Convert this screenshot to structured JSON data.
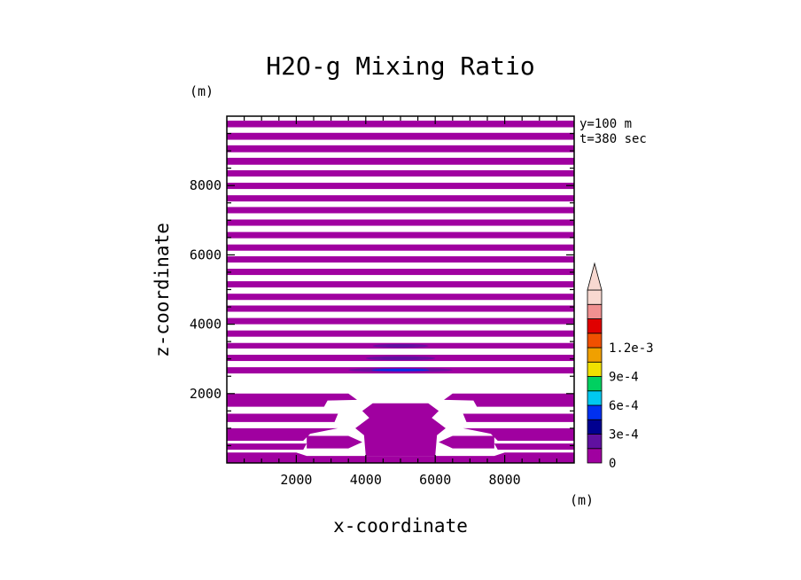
{
  "chart_data": {
    "type": "heatmap",
    "title": "H2O-g Mixing Ratio",
    "xlabel": "x-coordinate",
    "ylabel": "z-coordinate",
    "x_unit": "(m)",
    "y_unit": "(m)",
    "annotations": [
      "y=100 m",
      "t=380 sec"
    ],
    "xlim": [
      0,
      10000
    ],
    "ylim": [
      0,
      10000
    ],
    "x_ticks": [
      2000,
      4000,
      6000,
      8000
    ],
    "y_ticks": [
      2000,
      4000,
      6000,
      8000
    ],
    "x_tick_labels": [
      "2000",
      "4000",
      "6000",
      "8000"
    ],
    "y_tick_labels": [
      "2000",
      "4000",
      "6000",
      "8000"
    ],
    "colorbar": {
      "levels": [
        0,
        0.00015,
        0.0003,
        0.00045,
        0.0006,
        0.00075,
        0.0009,
        0.00105,
        0.0012,
        0.00135
      ],
      "colors": [
        "#a000a0",
        "#6010a0",
        "#000090",
        "#0030f0",
        "#00c8f0",
        "#00d060",
        "#f0e000",
        "#f0a000",
        "#f05000",
        "#e00000",
        "#f09090",
        "#f8d8d0"
      ],
      "tick_labels": [
        "0",
        "3e-4",
        "6e-4",
        "9e-4",
        "1.2e-3"
      ],
      "extend": "max"
    },
    "fill_bands_z": [
      [
        9680,
        9870
      ],
      [
        9320,
        9520
      ],
      [
        8960,
        9160
      ],
      [
        8600,
        8800
      ],
      [
        8260,
        8440
      ],
      [
        7900,
        8080
      ],
      [
        7540,
        7720
      ],
      [
        7200,
        7380
      ],
      [
        6840,
        7020
      ],
      [
        6480,
        6660
      ],
      [
        6120,
        6300
      ],
      [
        5780,
        5960
      ],
      [
        5420,
        5600
      ],
      [
        5060,
        5240
      ],
      [
        4700,
        4880
      ],
      [
        4360,
        4540
      ],
      [
        4000,
        4180
      ],
      [
        3640,
        3820
      ],
      [
        3300,
        3460
      ],
      [
        2940,
        3120
      ],
      [
        2580,
        2760
      ]
    ],
    "dark_cores": [
      {
        "x": [
          3500,
          6500
        ],
        "z": [
          2620,
          2740
        ],
        "color": "#0030f0"
      },
      {
        "x": [
          4000,
          6000
        ],
        "z": [
          2960,
          3080
        ],
        "color": "#6010a0"
      },
      {
        "x": [
          4200,
          5800
        ],
        "z": [
          3320,
          3430
        ],
        "color": "#6010a0"
      }
    ]
  }
}
